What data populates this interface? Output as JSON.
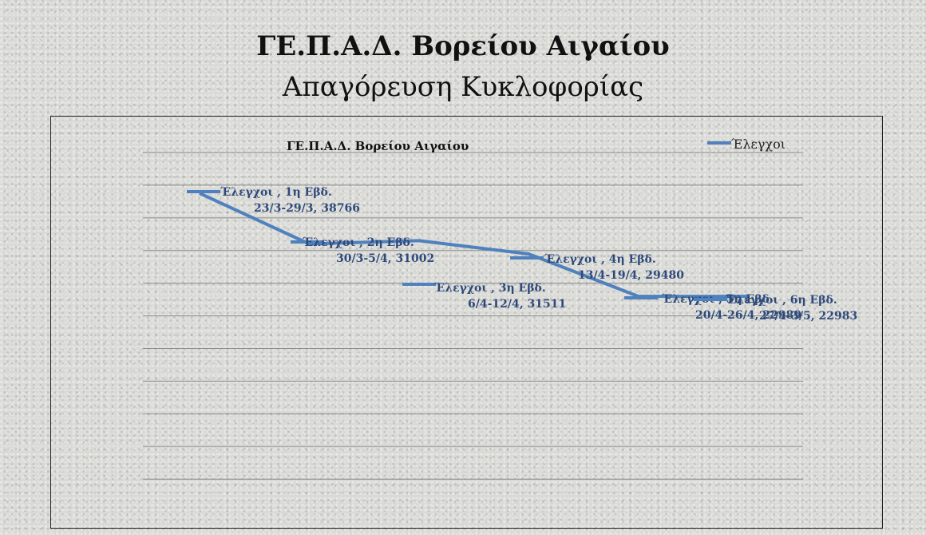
{
  "slide": {
    "title": "ΓΕ.Π.Α.Δ. Βορείου Αιγαίου",
    "subtitle": "Απαγόρευση Κυκλοφορίας"
  },
  "chart_data": {
    "type": "line",
    "title": "ΓΕ.Π.Α.Δ. Βορείου Αιγαίου",
    "xlabel": "",
    "ylabel": "",
    "categories": [
      "1η Εβδ. 23/3-29/3",
      "2η Εβδ. 30/3-5/4",
      "3η Εβδ. 6/4-12/4",
      "4η Εβδ. 13/4-19/4",
      "5η Εβδ. 20/4-26/4",
      "6η Εβδ. 27/4-3/5"
    ],
    "series": [
      {
        "name": "Έλεγχοι",
        "values": [
          38766,
          31002,
          31511,
          29480,
          22989,
          22983
        ]
      }
    ],
    "data_labels": [
      [
        "Έλεγχοι , 1η Εβδ.",
        "23/3-29/3, 38766"
      ],
      [
        "Έλεγχοι , 2η Εβδ.",
        "30/3-5/4, 31002"
      ],
      [
        "Έλεγχοι , 3η Εβδ.",
        "6/4-12/4, 31511"
      ],
      [
        "Έλεγχοι , 4η Εβδ.",
        "13/4-19/4, 29480"
      ],
      [
        "Έλεγχοι , 5η Εβδ.",
        "20/4-26/4, 22989"
      ],
      [
        "Έλεγχοι , 6η Εβδ.",
        "27/4-3/5, 22983"
      ]
    ],
    "ylim": [
      -10000,
      45000
    ],
    "yticks": [
      -10000,
      -5000,
      0,
      5000,
      10000,
      15000,
      20000,
      25000,
      30000,
      35000,
      40000,
      45000
    ],
    "grid": true,
    "legend": "top-right",
    "colors": {
      "series": "#4f81bd",
      "label": "#2e4a7a",
      "grid": "#8c8c8c"
    }
  }
}
